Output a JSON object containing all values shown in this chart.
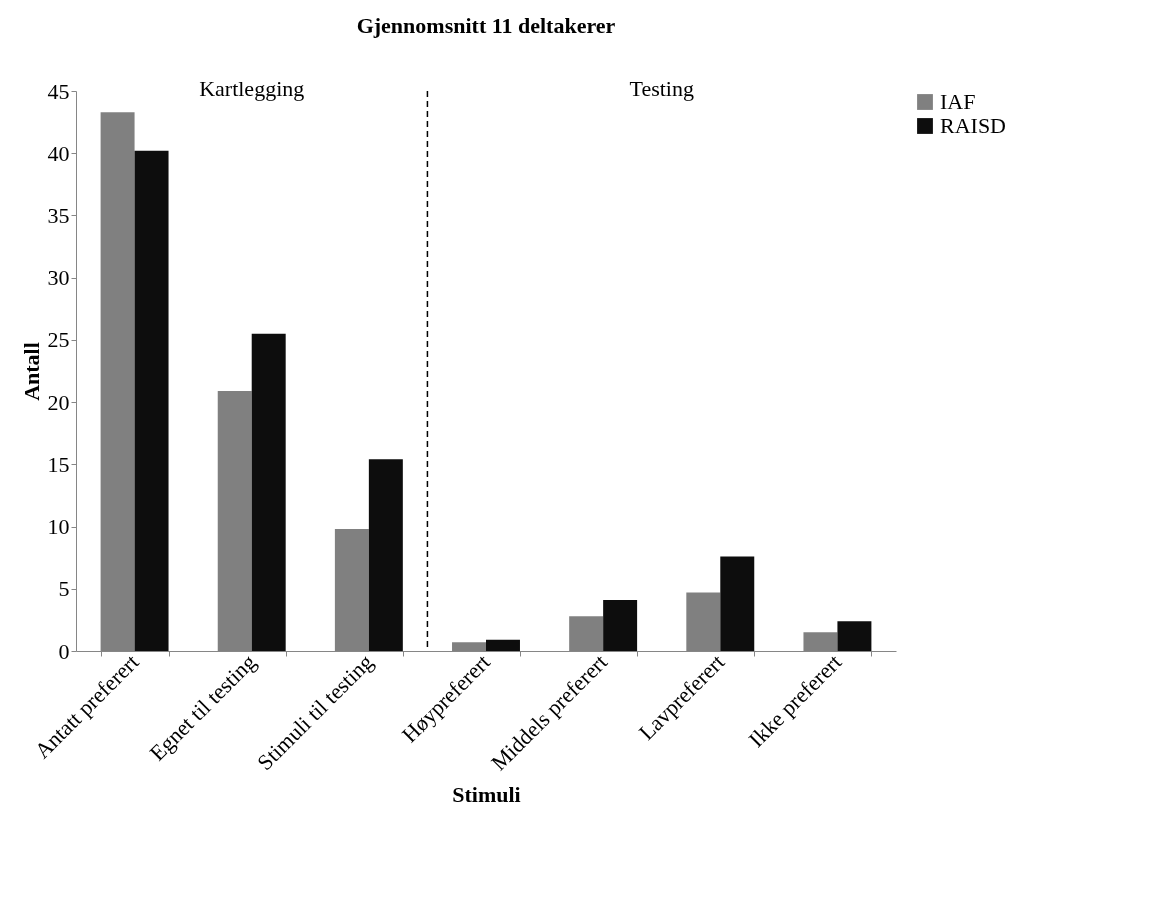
{
  "chart_data": {
    "type": "bar",
    "title": "Gjennomsnitt 11 deltakerer",
    "xlabel": "Stimuli",
    "ylabel": "Antall",
    "categories": [
      "Antatt preferert",
      "Egnet til testing",
      "Stimuli til testing",
      "Høypreferert",
      "Middels preferert",
      "Lavpreferert",
      "Ikke preferert"
    ],
    "series": [
      {
        "name": "IAF",
        "color": "#808080",
        "values": [
          43.3,
          20.9,
          9.8,
          0.7,
          2.8,
          4.7,
          1.5
        ]
      },
      {
        "name": "RAISD",
        "color": "#0d0d0d",
        "values": [
          40.2,
          25.5,
          15.4,
          0.9,
          4.1,
          7.6,
          2.4
        ]
      }
    ],
    "ylim": [
      0,
      45
    ],
    "yticks": [
      0,
      5,
      10,
      15,
      20,
      25,
      30,
      35,
      40,
      45
    ],
    "annotations": [
      "Kartlegging",
      "Testing"
    ],
    "grid": false,
    "legend": "right"
  }
}
